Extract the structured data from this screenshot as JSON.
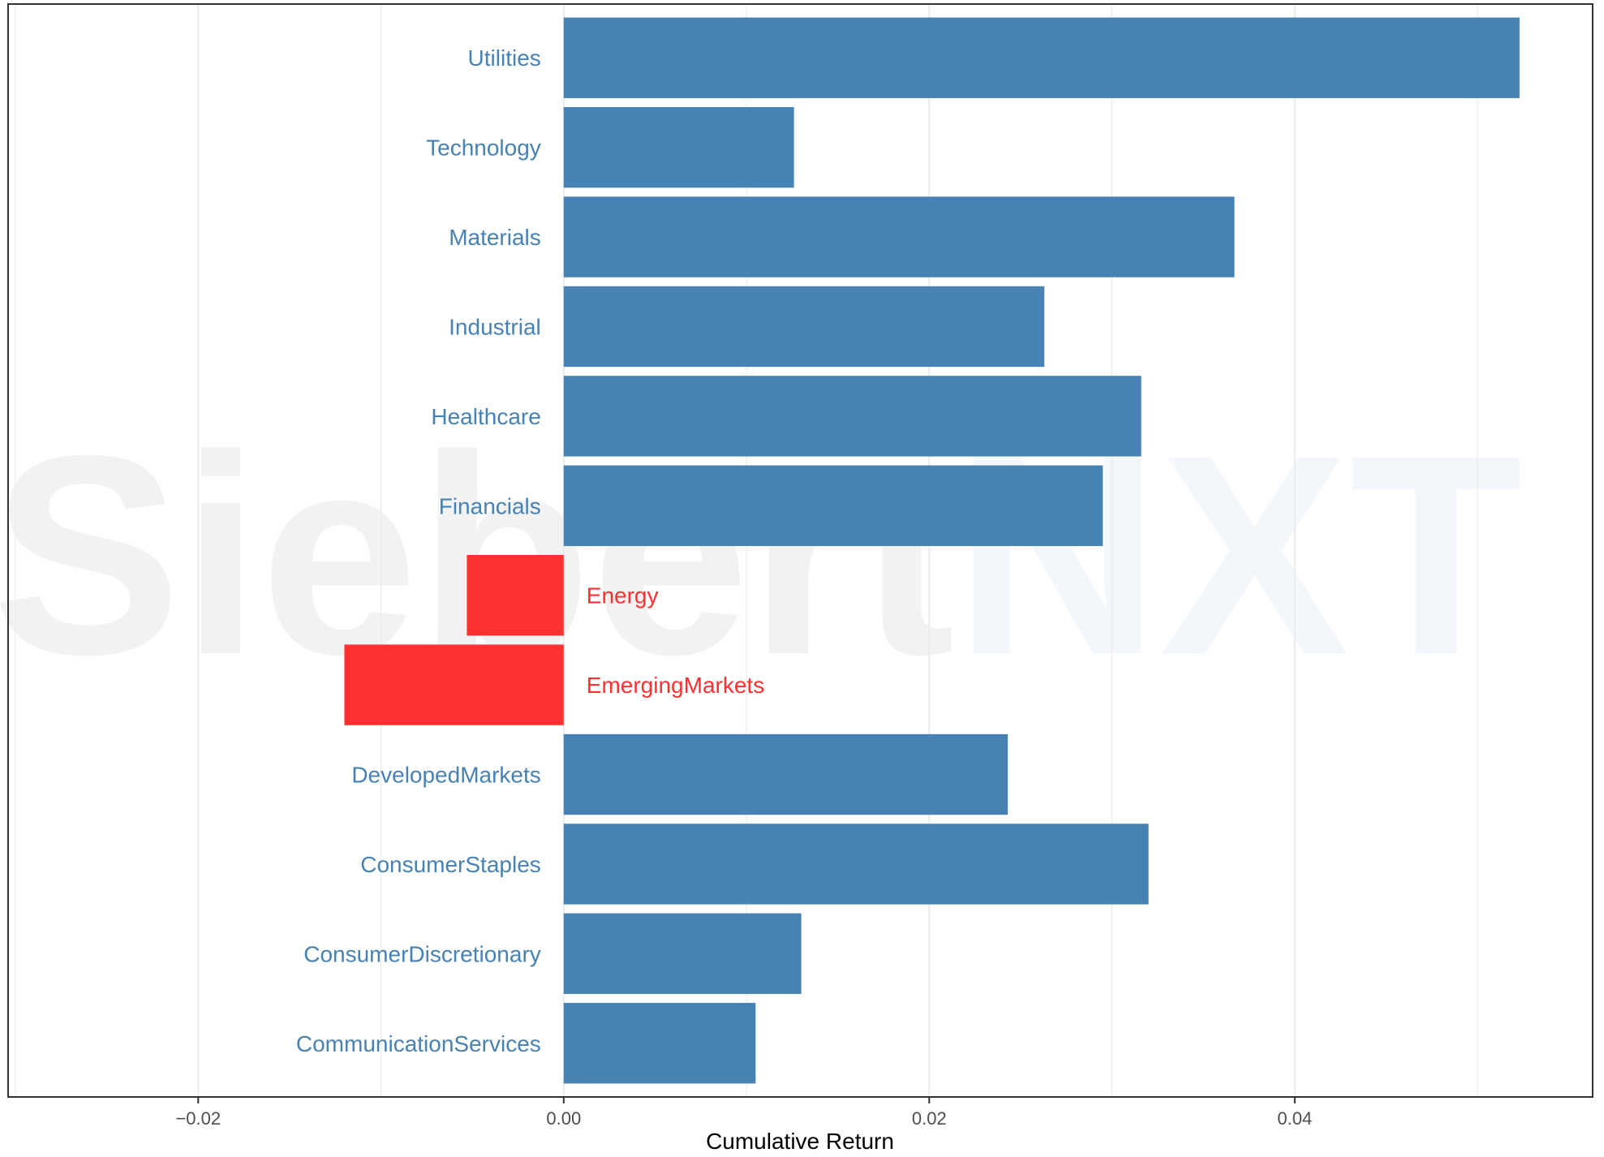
{
  "watermark": {
    "part1": "Siebert",
    "part2": "NXT"
  },
  "chart_data": {
    "type": "bar",
    "orientation": "horizontal",
    "title": "",
    "xlabel": "Cumulative Return",
    "ylabel": "",
    "xlim": [
      -0.0304,
      0.0563
    ],
    "x_ticks": [
      -0.02,
      0.0,
      0.02,
      0.04
    ],
    "x_tick_labels": [
      "−0.02",
      "0.00",
      "0.02",
      "0.04"
    ],
    "grid": "vertical major and minor",
    "categories": [
      "Utilities",
      "Technology",
      "Materials",
      "Industrial",
      "Healthcare",
      "Financials",
      "Energy",
      "EmergingMarkets",
      "DevelopedMarkets",
      "ConsumerStaples",
      "ConsumerDiscretionary",
      "CommunicationServices"
    ],
    "values": [
      0.0523,
      0.0126,
      0.0367,
      0.0263,
      0.0316,
      0.0295,
      -0.0053,
      -0.012,
      0.0243,
      0.032,
      0.013,
      0.0105
    ],
    "colors": {
      "positive": "#4682B4",
      "negative": "#FF3030"
    }
  }
}
